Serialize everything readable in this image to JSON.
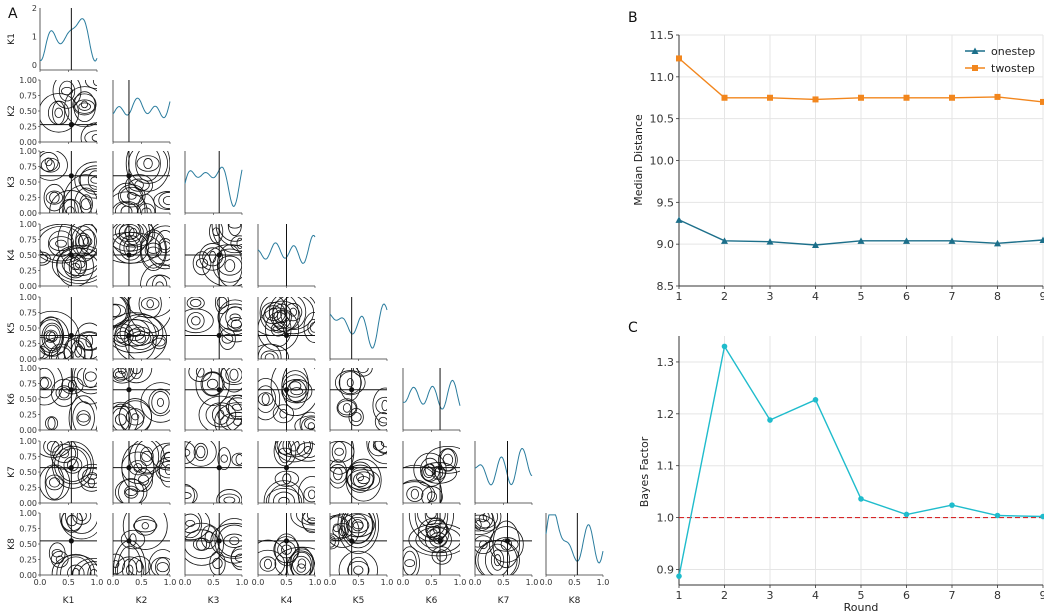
{
  "panels": {
    "a": "A",
    "b": "B",
    "c": "C"
  },
  "colors": {
    "marginal": "#2a7c9e",
    "onestep": "#1c6f8a",
    "twostep": "#f2861d",
    "bayes": "#1fbccc",
    "ref": "#d62728",
    "grid": "#e5e5e5"
  },
  "chart_data": [
    {
      "type": "corner",
      "parameters": [
        "K1",
        "K2",
        "K3",
        "K4",
        "K5",
        "K6",
        "K7",
        "K8"
      ],
      "best_fit": [
        0.55,
        0.28,
        0.6,
        0.5,
        0.38,
        0.65,
        0.57,
        0.55
      ],
      "axis_ticks": [
        "0.0",
        "0.5",
        "1.0"
      ],
      "y_ticks": [
        "0.00",
        "0.25",
        "0.50",
        "0.75",
        "1.00"
      ],
      "k1_ticks": [
        "0",
        "1",
        "2"
      ]
    },
    {
      "type": "line",
      "x": [
        1,
        2,
        3,
        4,
        5,
        6,
        7,
        8,
        9
      ],
      "xticks": [
        "1",
        "2",
        "3",
        "4",
        "5",
        "6",
        "7",
        "8",
        "9"
      ],
      "ylabel": "Median Distance",
      "ylim": [
        8.5,
        11.5
      ],
      "yticks": [
        "8.5",
        "9.0",
        "9.5",
        "10.0",
        "10.5",
        "11.0",
        "11.5"
      ],
      "legend_position": "top-right",
      "grid": true,
      "series": [
        {
          "name": "onestep",
          "marker": "triangle",
          "values": [
            9.29,
            9.04,
            9.03,
            8.99,
            9.04,
            9.04,
            9.04,
            9.01,
            9.05
          ]
        },
        {
          "name": "twostep",
          "marker": "square",
          "values": [
            11.22,
            10.75,
            10.75,
            10.73,
            10.75,
            10.75,
            10.75,
            10.76,
            10.7
          ]
        }
      ]
    },
    {
      "type": "line",
      "x": [
        1,
        2,
        3,
        4,
        5,
        6,
        7,
        8,
        9
      ],
      "xticks": [
        "1",
        "2",
        "3",
        "4",
        "5",
        "6",
        "7",
        "8",
        "9"
      ],
      "xlabel": "Round",
      "ylabel": "Bayes Factor",
      "ylim": [
        0.87,
        1.35
      ],
      "yticks": [
        "0.9",
        "1.0",
        "1.1",
        "1.2",
        "1.3"
      ],
      "reference_line": 1.0,
      "grid": true,
      "series": [
        {
          "values": [
            0.887,
            1.33,
            1.188,
            1.227,
            1.036,
            1.006,
            1.024,
            1.004,
            1.002
          ]
        }
      ]
    }
  ]
}
